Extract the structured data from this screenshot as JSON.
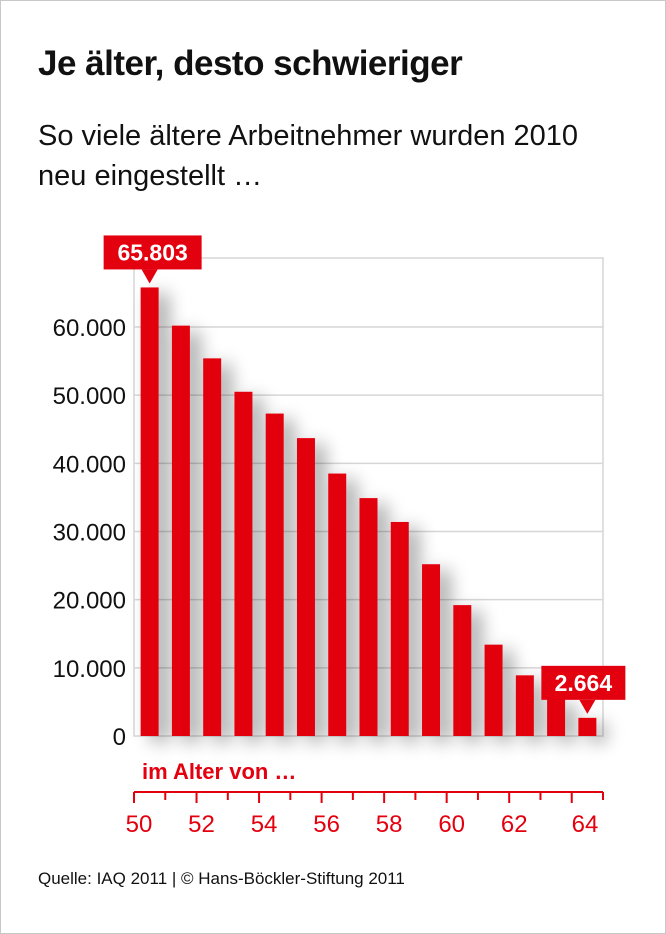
{
  "chart_data": {
    "type": "bar",
    "title": "Je älter, desto schwieriger",
    "subtitle": "So viele ältere Arbeitnehmer wurden 2010 neu eingestellt …",
    "xlabel": "im Alter von …",
    "ylabel": "",
    "categories": [
      "50",
      "51",
      "52",
      "53",
      "54",
      "55",
      "56",
      "57",
      "58",
      "59",
      "60",
      "61",
      "62",
      "63",
      "64"
    ],
    "values": [
      65803,
      60200,
      55400,
      50500,
      47300,
      43700,
      38500,
      34900,
      31400,
      25200,
      19200,
      13400,
      8900,
      5500,
      2664
    ],
    "x_tick_labels": [
      "50",
      "52",
      "54",
      "56",
      "58",
      "60",
      "62",
      "64"
    ],
    "y_ticks": [
      0,
      10000,
      20000,
      30000,
      40000,
      50000,
      60000
    ],
    "y_tick_labels": [
      "0",
      "10.000",
      "20.000",
      "30.000",
      "40.000",
      "50.000",
      "60.000"
    ],
    "ylim": [
      0,
      70000
    ],
    "grid": true,
    "annotations": [
      {
        "category": "50",
        "text": "65.803"
      },
      {
        "category": "64",
        "text": "2.664"
      }
    ],
    "colors": {
      "bar": "#e3000f",
      "grid": "#d6d6d6",
      "axis_label": "#e3000f"
    }
  },
  "source": "Quelle: IAQ 2011 | © Hans-Böckler-Stiftung 2011"
}
